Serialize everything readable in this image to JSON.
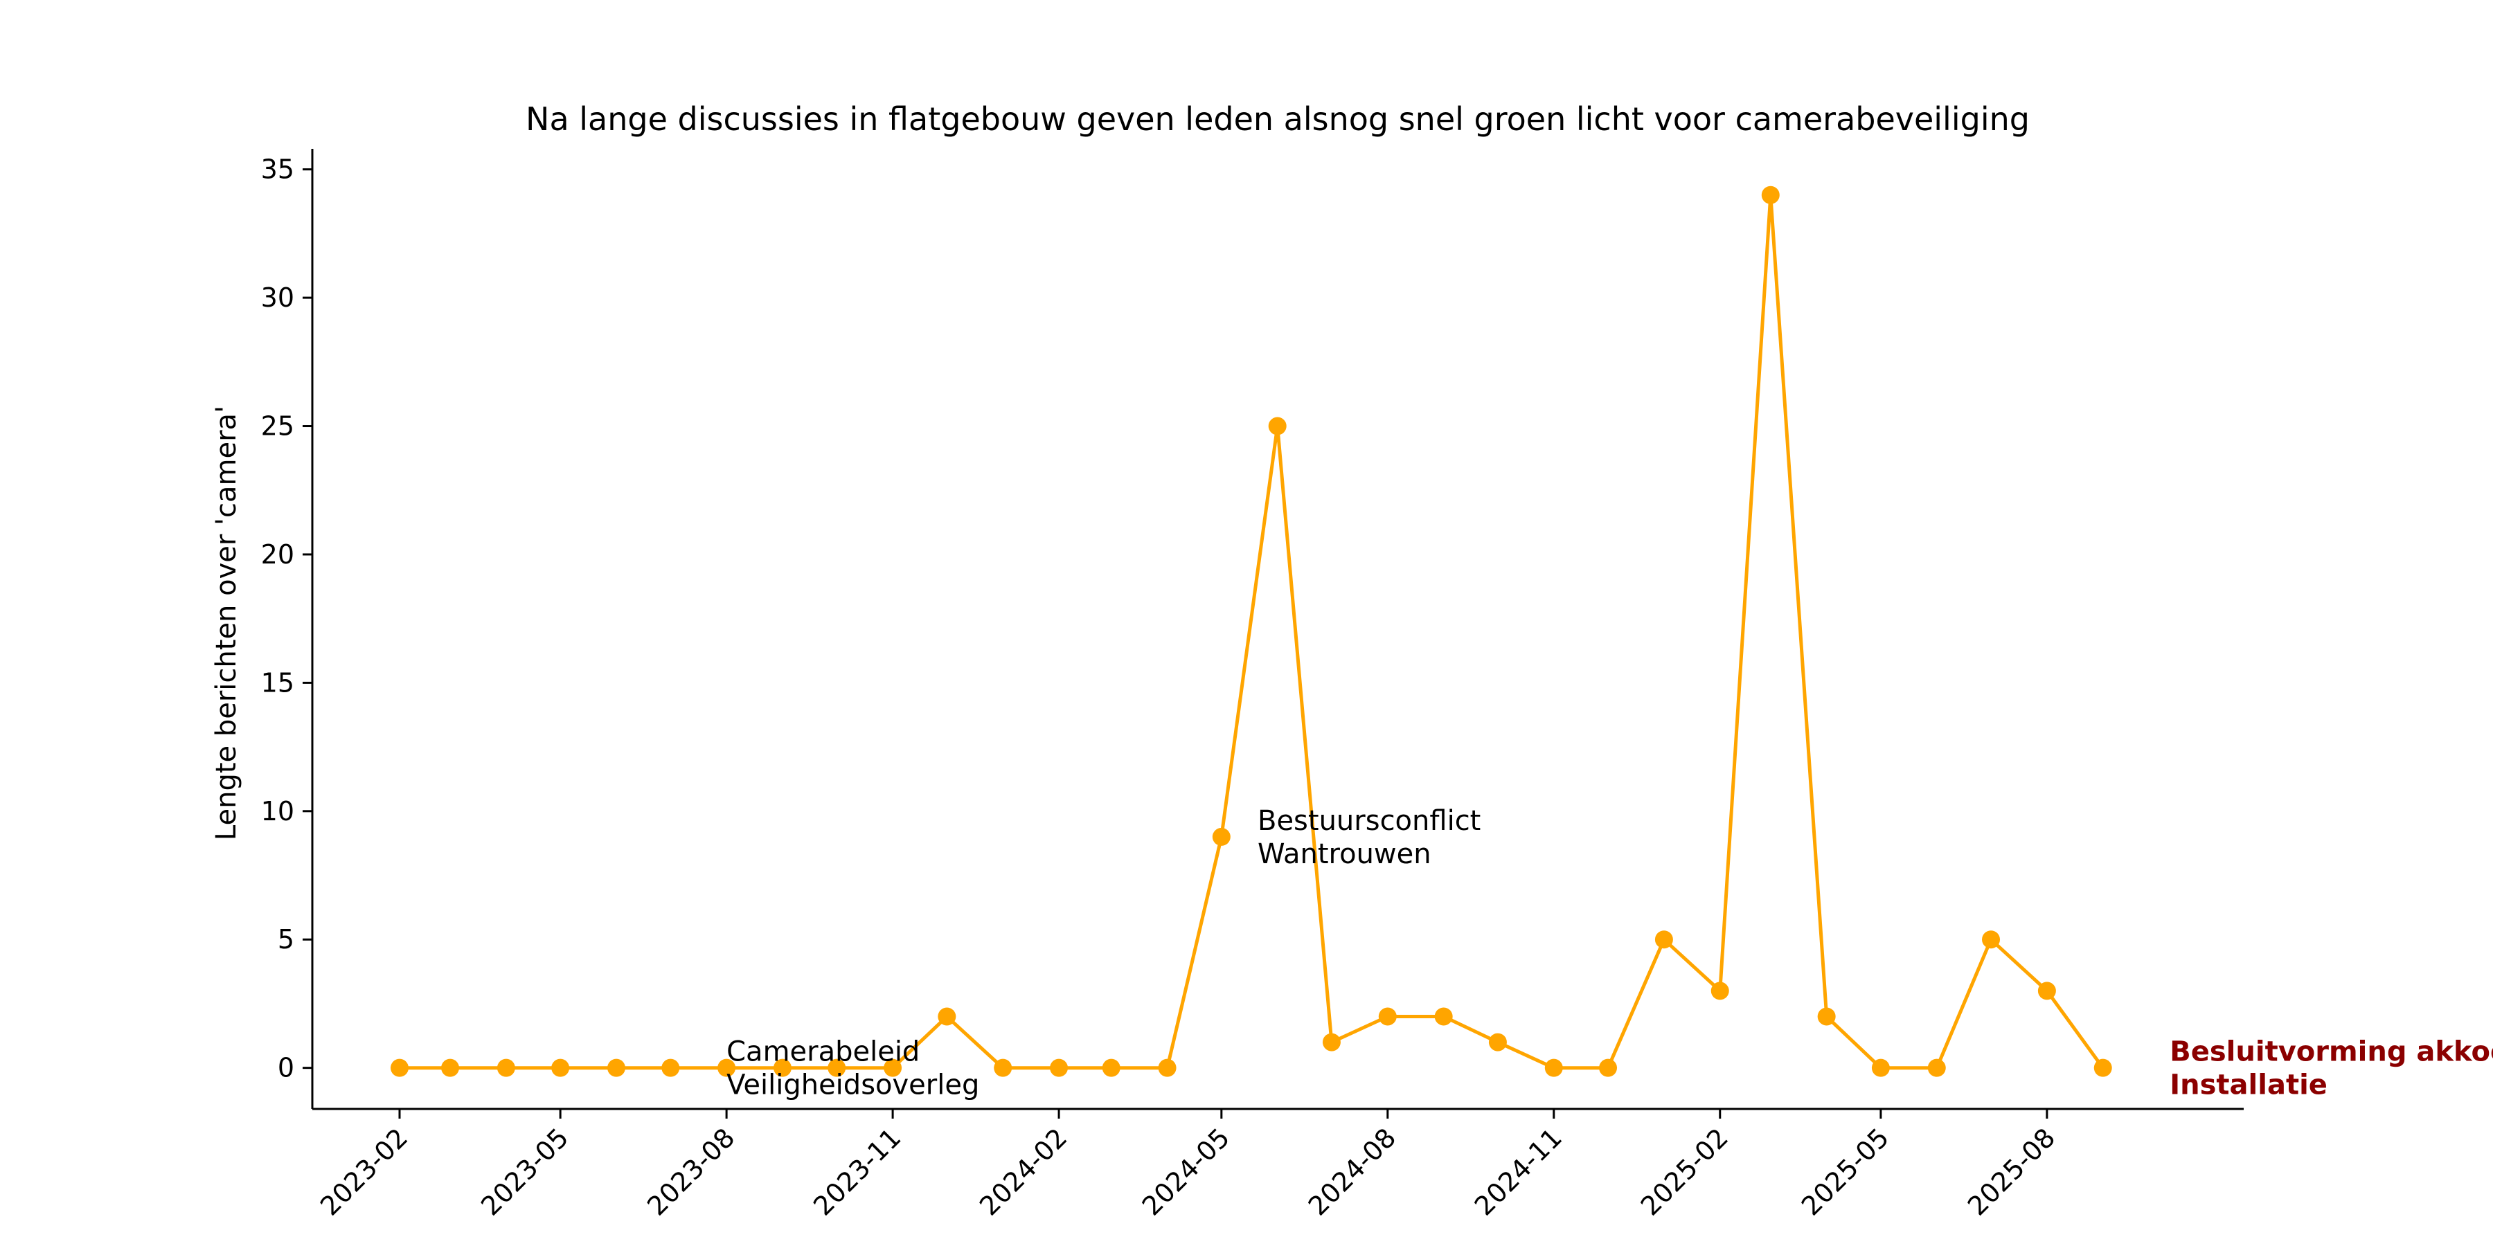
{
  "chart_data": {
    "type": "line",
    "title": "Na lange discussies in flatgebouw geven leden alsnog snel groen licht voor camerabeveiliging",
    "xlabel": "",
    "ylabel": "Lengte berichten over 'camera'",
    "ylim": [
      -1.6,
      35.8
    ],
    "yticks": [
      0,
      5,
      10,
      15,
      20,
      25,
      30,
      35
    ],
    "xticks": [
      "2023-02",
      "2023-05",
      "2023-08",
      "2023-11",
      "2024-02",
      "2024-05",
      "2024-08",
      "2024-11",
      "2025-02",
      "2025-05",
      "2025-08"
    ],
    "x": [
      "2023-02-01",
      "2023-03-01",
      "2023-04-01",
      "2023-05-01",
      "2023-06-01",
      "2023-07-01",
      "2023-08-01",
      "2023-09-01",
      "2023-10-01",
      "2023-11-01",
      "2023-12-01",
      "2024-01-01",
      "2024-02-01",
      "2024-03-01",
      "2024-04-01",
      "2024-05-01",
      "2024-06-01",
      "2024-07-01",
      "2024-08-01",
      "2024-09-01",
      "2024-10-01",
      "2024-11-01",
      "2024-12-01",
      "2025-01-01",
      "2025-02-01",
      "2025-03-01",
      "2025-04-01",
      "2025-05-01",
      "2025-06-01",
      "2025-07-01",
      "2025-08-01",
      "2025-09-01"
    ],
    "series": [
      {
        "color": "#FFA500",
        "values": [
          0,
          0,
          0,
          0,
          0,
          0,
          0,
          0,
          0,
          0,
          2,
          0,
          0,
          0,
          0,
          9,
          25,
          1,
          2,
          2,
          1,
          0,
          0,
          5,
          3,
          34,
          2,
          0,
          0,
          5,
          3,
          0
        ]
      }
    ],
    "annotations": [
      {
        "x": "2023-08-01",
        "y": 0,
        "lines": [
          "Camerabeleid",
          "Veiligheidsoverleg"
        ],
        "emphasis": false
      },
      {
        "x": "2024-05-21",
        "y": 9,
        "lines": [
          "Bestuursconflict",
          "Wantrouwen"
        ],
        "emphasis": false
      },
      {
        "x": "2025-10-08",
        "y": 0,
        "lines": [
          "Besluitvorming akkoord",
          "Installatie"
        ],
        "emphasis": true,
        "color": "#8B0000"
      }
    ],
    "grid": false
  }
}
